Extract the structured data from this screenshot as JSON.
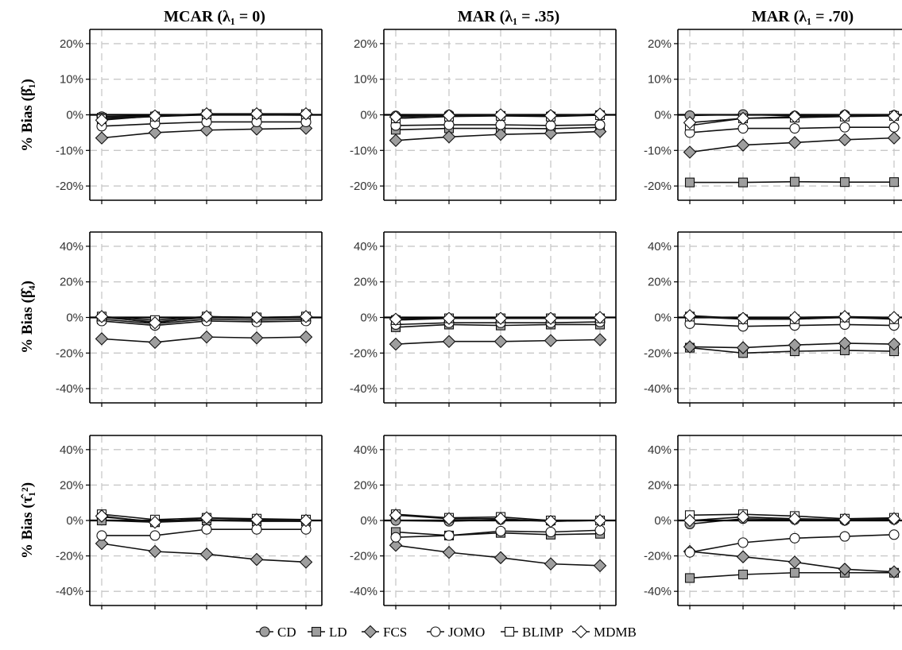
{
  "column_titles": [
    "MCAR (λ₁ = 0)",
    "MAR (λ₁ = .35)",
    "MAR (λ₁ = .70)"
  ],
  "row_labels": [
    "% Bias (β̂₁)",
    "% Bias (β̂₄)",
    "% Bias (τ̂₁²)"
  ],
  "legend": [
    {
      "name": "CD",
      "marker": "circle",
      "fill": "#9e9e9e"
    },
    {
      "name": "LD",
      "marker": "square",
      "fill": "#9e9e9e"
    },
    {
      "name": "FCS",
      "marker": "diamond",
      "fill": "#9e9e9e"
    },
    {
      "name": "JOMO",
      "marker": "circle",
      "fill": "#ffffff"
    },
    {
      "name": "BLIMP",
      "marker": "square",
      "fill": "#ffffff"
    },
    {
      "name": "MDMB",
      "marker": "diamond",
      "fill": "#ffffff"
    }
  ],
  "chart_data": [
    {
      "type": "line",
      "row": 0,
      "col": 0,
      "ylim": [
        -24,
        24
      ],
      "yticks": [
        -20,
        -10,
        0,
        10,
        20
      ],
      "tick_labels": [
        "-20%",
        "-10%",
        "0%",
        "10%",
        "20%"
      ],
      "x": [
        1,
        2,
        3,
        4,
        5
      ],
      "series": [
        {
          "name": "CD",
          "values": [
            -0.5,
            -0.3,
            0.1,
            0.1,
            0.0
          ]
        },
        {
          "name": "LD",
          "values": [
            -0.8,
            -0.5,
            0.0,
            0.0,
            -0.1
          ]
        },
        {
          "name": "FCS",
          "values": [
            -6.5,
            -5.0,
            -4.3,
            -4.0,
            -3.8
          ]
        },
        {
          "name": "JOMO",
          "values": [
            -3.2,
            -2.5,
            -2.0,
            -2.0,
            -2.0
          ]
        },
        {
          "name": "BLIMP",
          "values": [
            -1.2,
            -0.5,
            0.2,
            0.2,
            0.2
          ]
        },
        {
          "name": "MDMB",
          "values": [
            -1.5,
            -0.3,
            0.3,
            0.3,
            0.3
          ]
        }
      ]
    },
    {
      "type": "line",
      "row": 0,
      "col": 1,
      "ylim": [
        -24,
        24
      ],
      "yticks": [
        -20,
        -10,
        0,
        10,
        20
      ],
      "tick_labels": [
        "-20%",
        "-10%",
        "0%",
        "10%",
        "20%"
      ],
      "x": [
        1,
        2,
        3,
        4,
        5
      ],
      "series": [
        {
          "name": "CD",
          "values": [
            -0.3,
            0.0,
            -0.2,
            -0.2,
            0.1
          ]
        },
        {
          "name": "LD",
          "values": [
            -4.2,
            -3.8,
            -3.8,
            -3.9,
            -3.5
          ]
        },
        {
          "name": "FCS",
          "values": [
            -7.2,
            -6.2,
            -5.5,
            -5.2,
            -4.7
          ]
        },
        {
          "name": "JOMO",
          "values": [
            -3.0,
            -2.8,
            -2.8,
            -3.0,
            -2.8
          ]
        },
        {
          "name": "BLIMP",
          "values": [
            -1.0,
            -0.5,
            -0.3,
            -0.5,
            -0.1
          ]
        },
        {
          "name": "MDMB",
          "values": [
            -0.6,
            -0.2,
            0.0,
            -0.2,
            0.2
          ]
        }
      ]
    },
    {
      "type": "line",
      "row": 0,
      "col": 2,
      "ylim": [
        -24,
        24
      ],
      "yticks": [
        -20,
        -10,
        0,
        10,
        20
      ],
      "tick_labels": [
        "-20%",
        "-10%",
        "0%",
        "10%",
        "20%"
      ],
      "x": [
        1,
        2,
        3,
        4,
        5
      ],
      "series": [
        {
          "name": "CD",
          "values": [
            -0.2,
            0.1,
            -0.3,
            0.0,
            -0.1
          ]
        },
        {
          "name": "LD",
          "values": [
            -19.0,
            -19.0,
            -18.8,
            -18.9,
            -18.9
          ]
        },
        {
          "name": "FCS",
          "values": [
            -10.5,
            -8.5,
            -7.8,
            -7.0,
            -6.5
          ]
        },
        {
          "name": "JOMO",
          "values": [
            -5.0,
            -3.8,
            -3.8,
            -3.5,
            -3.5
          ]
        },
        {
          "name": "BLIMP",
          "values": [
            -3.0,
            -1.0,
            -0.8,
            -0.5,
            -0.3
          ]
        },
        {
          "name": "MDMB",
          "values": [
            -2.2,
            -1.0,
            -0.5,
            -0.2,
            -0.3
          ]
        }
      ]
    },
    {
      "type": "line",
      "row": 1,
      "col": 0,
      "ylim": [
        -48,
        48
      ],
      "yticks": [
        -40,
        -20,
        0,
        20,
        40
      ],
      "tick_labels": [
        "-40%",
        "-20%",
        "0%",
        "20%",
        "40%"
      ],
      "x": [
        1,
        2,
        3,
        4,
        5
      ],
      "series": [
        {
          "name": "CD",
          "values": [
            0.0,
            -2.5,
            0.0,
            -0.5,
            0.0
          ]
        },
        {
          "name": "LD",
          "values": [
            -1.0,
            -3.5,
            -1.0,
            -1.5,
            -1.0
          ]
        },
        {
          "name": "FCS",
          "values": [
            -12.0,
            -14.0,
            -11.0,
            -11.5,
            -11.0
          ]
        },
        {
          "name": "JOMO",
          "values": [
            -2.0,
            -4.5,
            -2.0,
            -2.5,
            -2.0
          ]
        },
        {
          "name": "BLIMP",
          "values": [
            0.5,
            -1.5,
            0.5,
            0.0,
            0.5
          ]
        },
        {
          "name": "MDMB",
          "values": [
            0.5,
            -3.0,
            0.5,
            0.0,
            0.5
          ]
        }
      ]
    },
    {
      "type": "line",
      "row": 1,
      "col": 1,
      "ylim": [
        -48,
        48
      ],
      "yticks": [
        -40,
        -20,
        0,
        20,
        40
      ],
      "tick_labels": [
        "-40%",
        "-20%",
        "0%",
        "20%",
        "40%"
      ],
      "x": [
        1,
        2,
        3,
        4,
        5
      ],
      "series": [
        {
          "name": "CD",
          "values": [
            -1.0,
            -0.5,
            -0.5,
            -0.5,
            -0.5
          ]
        },
        {
          "name": "LD",
          "values": [
            -5.5,
            -4.0,
            -4.5,
            -4.0,
            -4.0
          ]
        },
        {
          "name": "FCS",
          "values": [
            -15.0,
            -13.5,
            -13.5,
            -13.0,
            -12.5
          ]
        },
        {
          "name": "JOMO",
          "values": [
            -4.0,
            -3.0,
            -3.0,
            -3.0,
            -2.5
          ]
        },
        {
          "name": "BLIMP",
          "values": [
            -1.5,
            -0.5,
            -0.5,
            -0.5,
            -0.5
          ]
        },
        {
          "name": "MDMB",
          "values": [
            -1.0,
            -0.5,
            -0.5,
            -0.5,
            0.0
          ]
        }
      ]
    },
    {
      "type": "line",
      "row": 1,
      "col": 2,
      "ylim": [
        -48,
        48
      ],
      "yticks": [
        -40,
        -20,
        0,
        20,
        40
      ],
      "tick_labels": [
        "-40%",
        "-20%",
        "0%",
        "20%",
        "40%"
      ],
      "x": [
        1,
        2,
        3,
        4,
        5
      ],
      "series": [
        {
          "name": "CD",
          "values": [
            0.5,
            -0.5,
            -0.5,
            0.0,
            -0.5
          ]
        },
        {
          "name": "LD",
          "values": [
            -17.0,
            -20.0,
            -19.0,
            -18.5,
            -19.0
          ]
        },
        {
          "name": "FCS",
          "values": [
            -16.5,
            -17.0,
            -15.5,
            -14.5,
            -15.0
          ]
        },
        {
          "name": "JOMO",
          "values": [
            -3.5,
            -5.0,
            -4.5,
            -4.0,
            -4.5
          ]
        },
        {
          "name": "BLIMP",
          "values": [
            0.5,
            -1.0,
            -1.0,
            0.0,
            -1.0
          ]
        },
        {
          "name": "MDMB",
          "values": [
            1.0,
            -0.5,
            0.0,
            0.5,
            0.0
          ]
        }
      ]
    },
    {
      "type": "line",
      "row": 2,
      "col": 0,
      "ylim": [
        -48,
        48
      ],
      "yticks": [
        -40,
        -20,
        0,
        20,
        40
      ],
      "tick_labels": [
        "-40%",
        "-20%",
        "0%",
        "20%",
        "40%"
      ],
      "x": [
        1,
        2,
        3,
        4,
        5
      ],
      "series": [
        {
          "name": "CD",
          "values": [
            2.0,
            -0.5,
            0.5,
            0.0,
            -0.5
          ]
        },
        {
          "name": "LD",
          "values": [
            0.0,
            -1.0,
            0.0,
            -0.5,
            -0.5
          ]
        },
        {
          "name": "FCS",
          "values": [
            -13.0,
            -17.5,
            -19.0,
            -22.0,
            -23.5
          ]
        },
        {
          "name": "JOMO",
          "values": [
            -8.5,
            -8.5,
            -5.0,
            -5.0,
            -5.0
          ]
        },
        {
          "name": "BLIMP",
          "values": [
            3.5,
            0.5,
            1.5,
            1.0,
            0.5
          ]
        },
        {
          "name": "MDMB",
          "values": [
            2.5,
            -1.0,
            1.5,
            0.5,
            0.0
          ]
        }
      ]
    },
    {
      "type": "line",
      "row": 2,
      "col": 1,
      "ylim": [
        -48,
        48
      ],
      "yticks": [
        -40,
        -20,
        0,
        20,
        40
      ],
      "tick_labels": [
        "-40%",
        "-20%",
        "0%",
        "20%",
        "40%"
      ],
      "x": [
        1,
        2,
        3,
        4,
        5
      ],
      "series": [
        {
          "name": "CD",
          "values": [
            0.0,
            -0.5,
            0.5,
            -0.5,
            0.0
          ]
        },
        {
          "name": "LD",
          "values": [
            -6.5,
            -8.5,
            -7.0,
            -8.0,
            -7.5
          ]
        },
        {
          "name": "FCS",
          "values": [
            -14.0,
            -18.0,
            -21.0,
            -24.5,
            -25.5
          ]
        },
        {
          "name": "JOMO",
          "values": [
            -9.5,
            -8.5,
            -6.0,
            -6.5,
            -5.5
          ]
        },
        {
          "name": "BLIMP",
          "values": [
            3.5,
            1.5,
            2.0,
            0.0,
            0.0
          ]
        },
        {
          "name": "MDMB",
          "values": [
            3.0,
            1.0,
            1.0,
            -0.5,
            0.0
          ]
        }
      ]
    },
    {
      "type": "line",
      "row": 2,
      "col": 2,
      "ylim": [
        -48,
        48
      ],
      "yticks": [
        -40,
        -20,
        0,
        20,
        40
      ],
      "tick_labels": [
        "-40%",
        "-20%",
        "0%",
        "20%",
        "40%"
      ],
      "x": [
        1,
        2,
        3,
        4,
        5
      ],
      "series": [
        {
          "name": "CD",
          "values": [
            -2.0,
            1.0,
            0.5,
            0.0,
            0.5
          ]
        },
        {
          "name": "LD",
          "values": [
            -32.5,
            -30.5,
            -29.5,
            -29.5,
            -29.5
          ]
        },
        {
          "name": "FCS",
          "values": [
            -17.5,
            -20.5,
            -23.5,
            -27.5,
            -29.0
          ]
        },
        {
          "name": "JOMO",
          "values": [
            -18.0,
            -12.5,
            -10.0,
            -9.0,
            -8.0
          ]
        },
        {
          "name": "BLIMP",
          "values": [
            3.0,
            3.5,
            2.5,
            1.0,
            1.5
          ]
        },
        {
          "name": "MDMB",
          "values": [
            0.0,
            2.0,
            1.0,
            0.5,
            1.0
          ]
        }
      ]
    }
  ]
}
